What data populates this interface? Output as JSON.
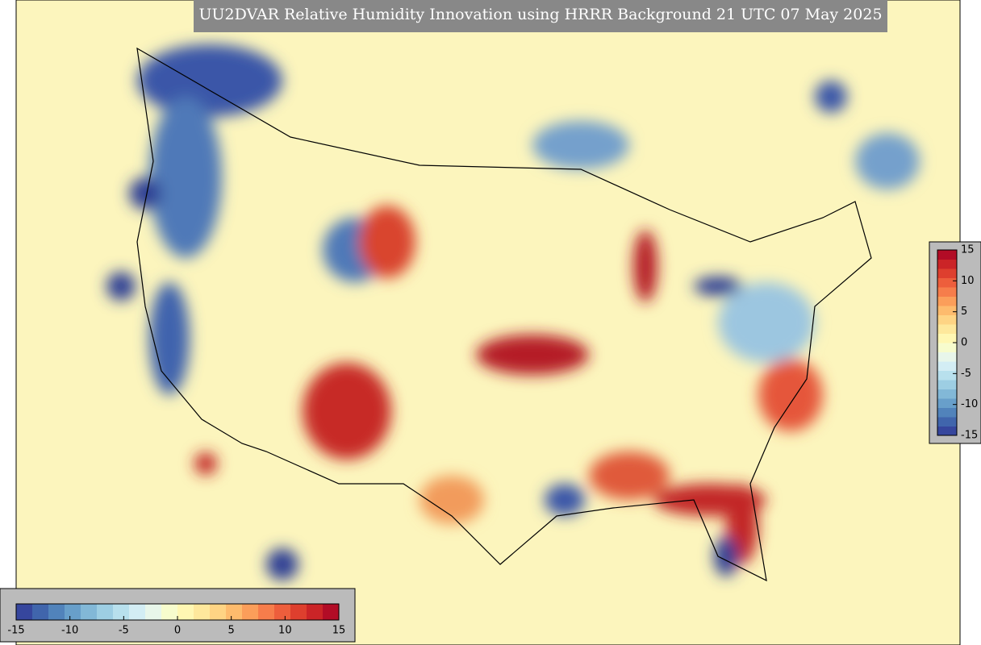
{
  "title": "UU2DVAR Relative Humidity Innovation using HRRR Background 21 UTC 07 May 2025",
  "colorbars": [
    {
      "orientation": "vertical",
      "lim": [
        -15,
        15
      ],
      "ticks": [
        15,
        10,
        5,
        0,
        -5,
        -10,
        -15
      ]
    },
    {
      "orientation": "horizontal",
      "lim": [
        -15,
        15
      ],
      "ticks": [
        -15,
        -10,
        -5,
        0,
        5,
        10,
        15
      ]
    }
  ],
  "colors": [
    "#313695",
    "#4575b4",
    "#74add1",
    "#abd9e9",
    "#e0f3f8",
    "#ffffbf",
    "#fee090",
    "#fdae61",
    "#f46d43",
    "#d73027",
    "#a50026"
  ]
}
